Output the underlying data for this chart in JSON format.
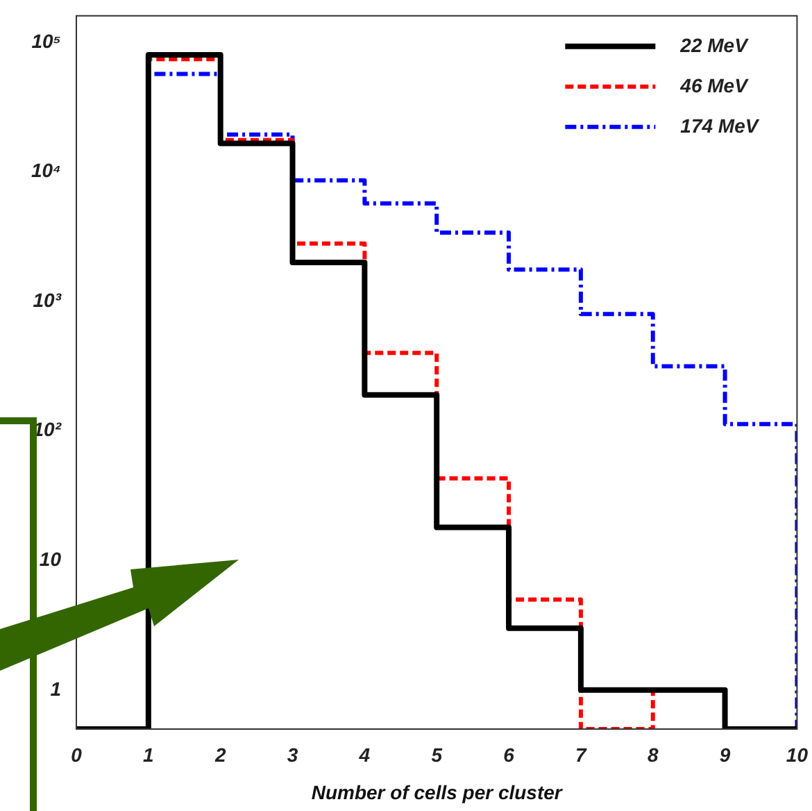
{
  "chart_data": {
    "type": "histogram",
    "xlabel": "Number of cells per cluster",
    "bins": [
      0,
      1,
      2,
      3,
      4,
      5,
      6,
      7,
      8,
      9,
      10
    ],
    "series": [
      {
        "name": "22 MeV",
        "color": "#000000",
        "line_style": "solid",
        "values": [
          null,
          80000,
          16600,
          2000,
          190,
          18,
          3,
          1,
          1,
          null
        ]
      },
      {
        "name": "46 MeV",
        "color": "#ff0000",
        "line_style": "dashed",
        "values": [
          null,
          74000,
          17600,
          2800,
          400,
          43,
          5,
          null,
          1,
          null
        ]
      },
      {
        "name": "174 MeV",
        "color": "#0000ff",
        "line_style": "dotted",
        "values": [
          null,
          57000,
          19400,
          8600,
          5700,
          3400,
          1760,
          800,
          316,
          113
        ]
      }
    ],
    "log": "y",
    "xlim": [
      0,
      10
    ],
    "xticks": [
      0,
      1,
      2,
      3,
      4,
      5,
      6,
      7,
      8,
      9,
      10
    ],
    "ylim": [
      0.5,
      160000
    ],
    "yticks": [
      {
        "value": 1,
        "label": "1"
      },
      {
        "value": 10,
        "label": "10"
      },
      {
        "value": 100,
        "label": "10²"
      },
      {
        "value": 1000,
        "label": "10³"
      },
      {
        "value": 10000,
        "label": "10⁴"
      },
      {
        "value": 100000,
        "label": "10⁵"
      }
    ],
    "legend": "top right"
  }
}
